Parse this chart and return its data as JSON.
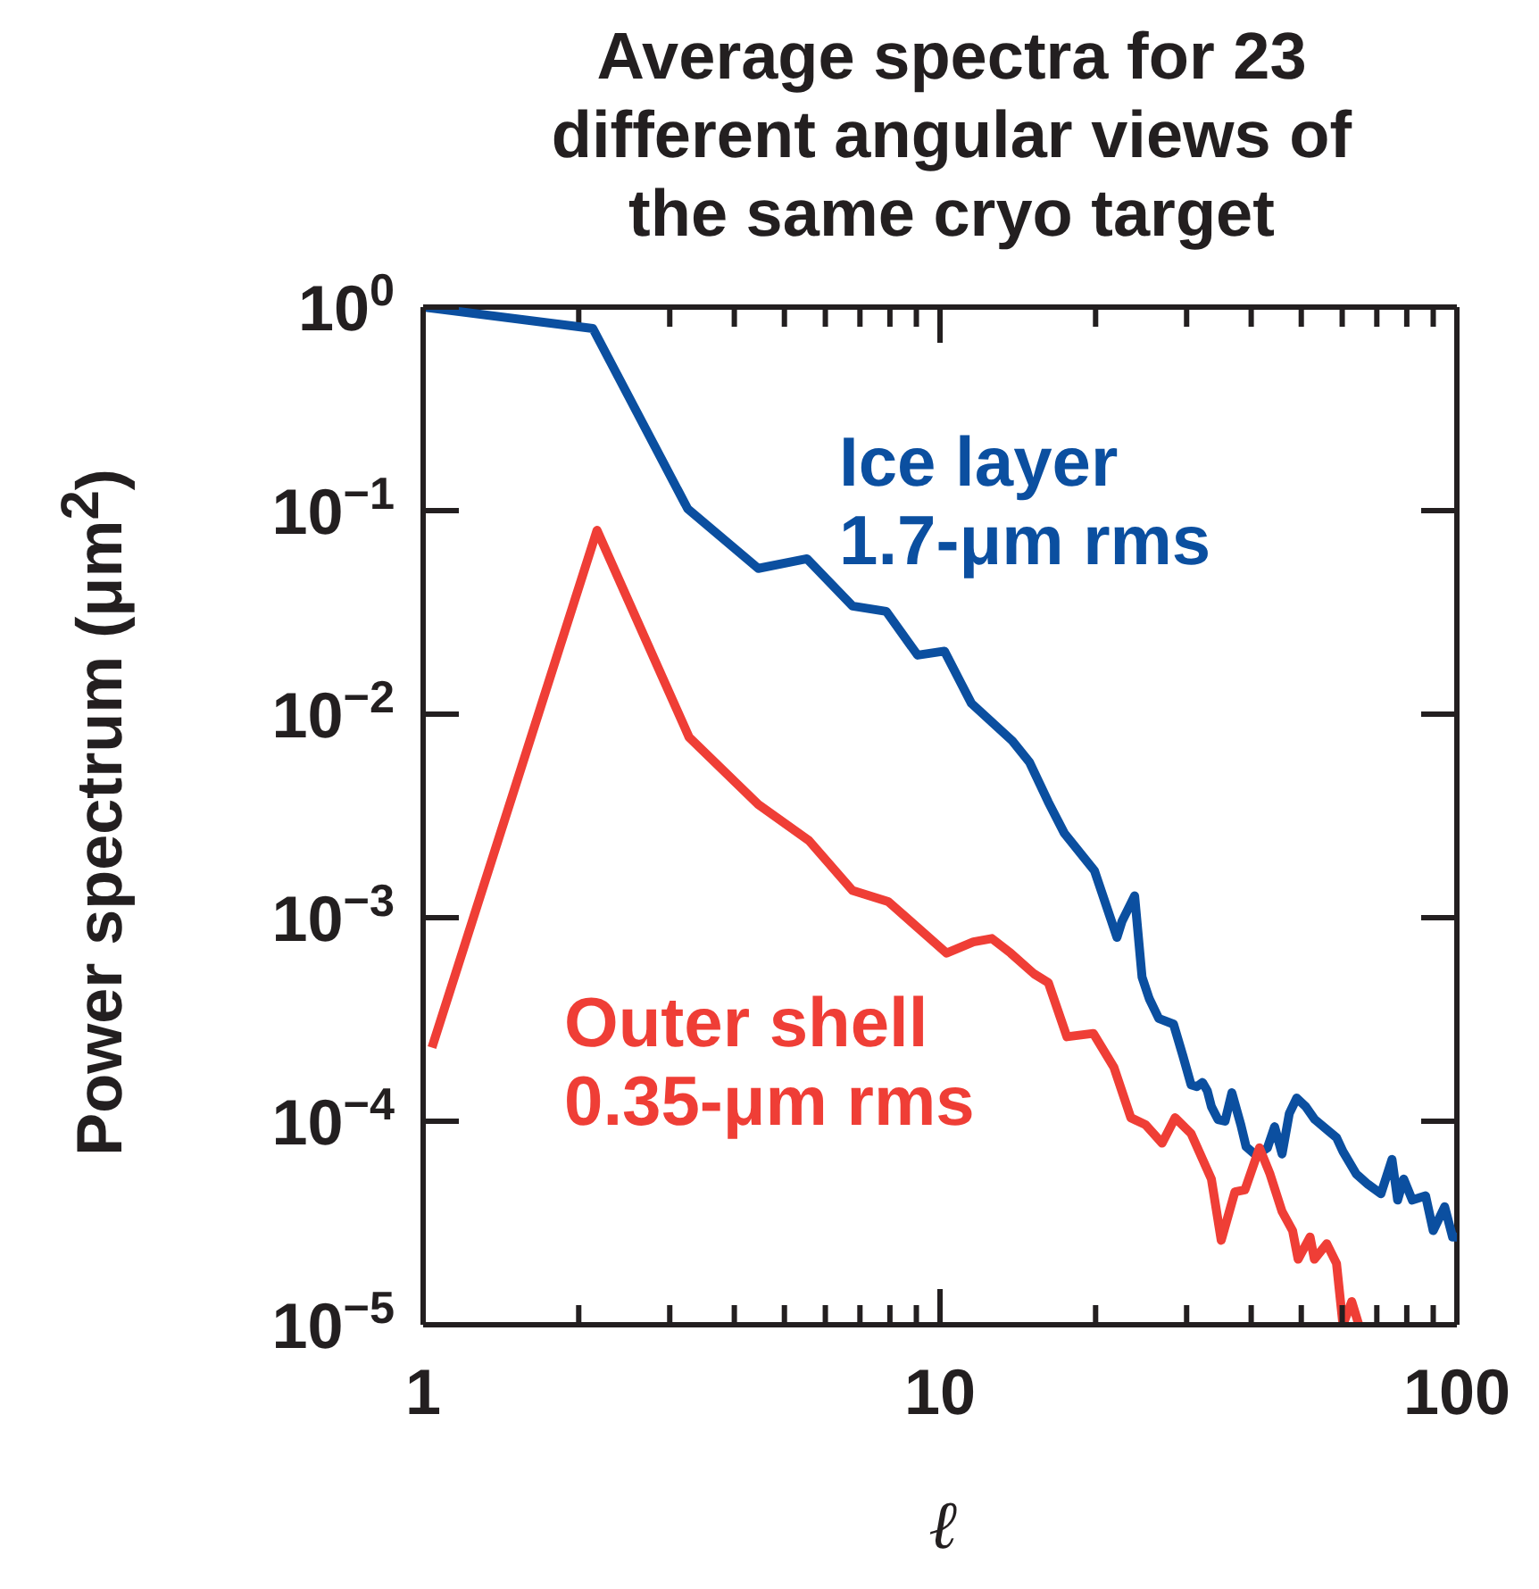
{
  "chart_data": {
    "type": "line",
    "title": "Average spectra for 23 different angular views of the same cryo target",
    "xlabel": "ℓ",
    "ylabel": "Power spectrum (μm$^{2}$)",
    "log": "xy",
    "legend": false,
    "marker": "none",
    "line_style": "solid",
    "xlim": [
      1,
      100
    ],
    "ylim": [
      1e-05,
      1
    ],
    "xticks": [
      1,
      {
        "value": 2,
        "label": null
      },
      {
        "value": 3,
        "label": null
      },
      {
        "value": 4,
        "label": null
      },
      {
        "value": 5,
        "label": null
      },
      {
        "value": 6,
        "label": null
      },
      {
        "value": 7,
        "label": null
      },
      {
        "value": 8,
        "label": null
      },
      {
        "value": 9,
        "label": null
      },
      10,
      {
        "value": 20,
        "label": null
      },
      {
        "value": 30,
        "label": null
      },
      {
        "value": 40,
        "label": null
      },
      {
        "value": 50,
        "label": null
      },
      {
        "value": 60,
        "label": null
      },
      {
        "value": 70,
        "label": null
      },
      {
        "value": 80,
        "label": null
      },
      {
        "value": 90,
        "label": null
      },
      100
    ],
    "yticks": [
      {
        "value": 1e-05,
        "label": "10$^{−5}$"
      },
      {
        "value": 0.0001,
        "label": "10$^{−4}$"
      },
      {
        "value": 0.001,
        "label": "10$^{−3}$"
      },
      {
        "value": 0.01,
        "label": "10$^{−2}$"
      },
      {
        "value": 0.1,
        "label": "10$^{−1}$"
      },
      {
        "value": 1,
        "label": "10$^{0}$"
      }
    ],
    "series": [
      {
        "name": "Ice layer\n1.7-μm rms",
        "color": "#0b4fa0",
        "x": [
          1,
          2.13,
          3.25,
          4.45,
          5.53,
          6.77,
          7.87,
          9.05,
          10.2,
          11.5,
          13,
          13.8,
          14.9,
          16.2,
          17.4,
          19.9,
          22,
          22.5,
          23.8,
          24.6,
          25.4,
          26.5,
          28.3,
          29.5,
          30.6,
          31.4,
          32.2,
          32.9,
          33.5,
          34.5,
          35.6,
          36.7,
          38.2,
          39.1,
          40.9,
          43,
          44.4,
          45.9,
          47.4,
          49,
          51,
          53.1,
          58.5,
          60.2,
          63.9,
          67.3,
          71.3,
          74.9,
          76.8,
          78.9,
          82,
          87,
          90,
          94.7,
          98.1,
          100
        ],
        "values": [
          1,
          0.785,
          0.102,
          0.052,
          0.058,
          0.034,
          0.032,
          0.0195,
          0.0204,
          0.0113,
          0.0085,
          0.0074,
          0.0058,
          0.0037,
          0.0026,
          0.0017,
          0.0008,
          0.00096,
          0.00128,
          0.00051,
          0.0004,
          0.00032,
          0.0003,
          0.00021,
          0.000151,
          0.000148,
          0.000155,
          0.000141,
          0.000118,
          0.000102,
          0.0001,
          0.000138,
          9.6e-05,
          7.5e-05,
          6.8e-05,
          7.4e-05,
          9.4e-05,
          6.9e-05,
          0.000109,
          0.00013,
          0.000118,
          0.000102,
          8.3e-05,
          7.1e-05,
          5.5e-05,
          4.9e-05,
          4.4e-05,
          6.5e-05,
          4.1e-05,
          5.2e-05,
          4.1e-05,
          4.3e-05,
          2.9e-05,
          3.8e-05,
          2.7e-05,
          2.7e-05
        ]
      },
      {
        "name": "Outer shell\n0.35-μm rms",
        "color": "#ef3e36",
        "x": [
          1.04,
          2.17,
          3.27,
          4.45,
          5.57,
          6.77,
          7.94,
          10.3,
          11.6,
          12.6,
          13.7,
          15.2,
          16.2,
          17.6,
          19.8,
          21.7,
          23.4,
          25,
          26.9,
          28.5,
          30.6,
          33.5,
          35,
          37.2,
          38.9,
          41.5,
          43.5,
          45.9,
          48.1,
          49.3,
          52,
          53,
          56,
          58.5,
          60.2,
          62.6,
          64.6
        ],
        "values": [
          0.00023,
          0.08,
          0.0077,
          0.0036,
          0.0024,
          0.00136,
          0.0012,
          0.00067,
          0.00076,
          0.00079,
          0.00067,
          0.00053,
          0.00048,
          0.00026,
          0.00027,
          0.000184,
          0.000104,
          9.6e-05,
          7.8e-05,
          0.000104,
          8.7e-05,
          5.2e-05,
          2.6e-05,
          4.5e-05,
          4.6e-05,
          7.4e-05,
          5.5e-05,
          3.6e-05,
          2.9e-05,
          2.1e-05,
          2.7e-05,
          2.1e-05,
          2.5e-05,
          2e-05,
          1e-05,
          1.3e-05,
          1e-05
        ]
      }
    ]
  }
}
